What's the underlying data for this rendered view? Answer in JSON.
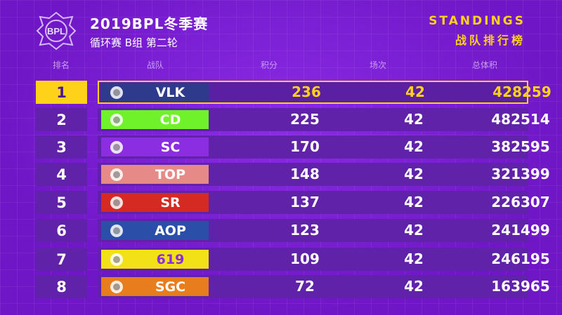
{
  "header": {
    "title": "2019BPL冬季赛",
    "subtitle": "循环赛 B组 第二轮",
    "standings_en": "STANDINGS",
    "standings_cn": "战队排行榜",
    "logo_text": "BPL"
  },
  "columns": {
    "rank": "排名",
    "team": "战队",
    "points": "积分",
    "matches": "场次",
    "total": "总体积"
  },
  "colors": {
    "background": "#7a1bd3",
    "row": "#5f22a8",
    "highlight": "#ffd21a"
  },
  "teams": [
    {
      "rank": "1",
      "name": "VLK",
      "points": "236",
      "matches": "42",
      "total": "428259",
      "color": "#2e3a8c",
      "icon": "vlk-logo"
    },
    {
      "rank": "2",
      "name": "CD",
      "points": "225",
      "matches": "42",
      "total": "482514",
      "color": "#6ff22a",
      "icon": "cd-logo"
    },
    {
      "rank": "3",
      "name": "SC",
      "points": "170",
      "matches": "42",
      "total": "382595",
      "color": "#8b2de0",
      "icon": "sc-logo"
    },
    {
      "rank": "4",
      "name": "TOP",
      "points": "148",
      "matches": "42",
      "total": "321399",
      "color": "#e58a86",
      "icon": "top-logo"
    },
    {
      "rank": "5",
      "name": "SR",
      "points": "137",
      "matches": "42",
      "total": "226307",
      "color": "#d42a22",
      "icon": "sr-logo"
    },
    {
      "rank": "6",
      "name": "AOP",
      "points": "123",
      "matches": "42",
      "total": "241499",
      "color": "#2b4fa8",
      "icon": "aop-logo"
    },
    {
      "rank": "7",
      "name": "619",
      "points": "109",
      "matches": "42",
      "total": "246195",
      "color": "#f2e116",
      "icon": "619-logo"
    },
    {
      "rank": "8",
      "name": "SGC",
      "points": "72",
      "matches": "42",
      "total": "163965",
      "color": "#e87d1e",
      "icon": "sgc-logo"
    }
  ]
}
